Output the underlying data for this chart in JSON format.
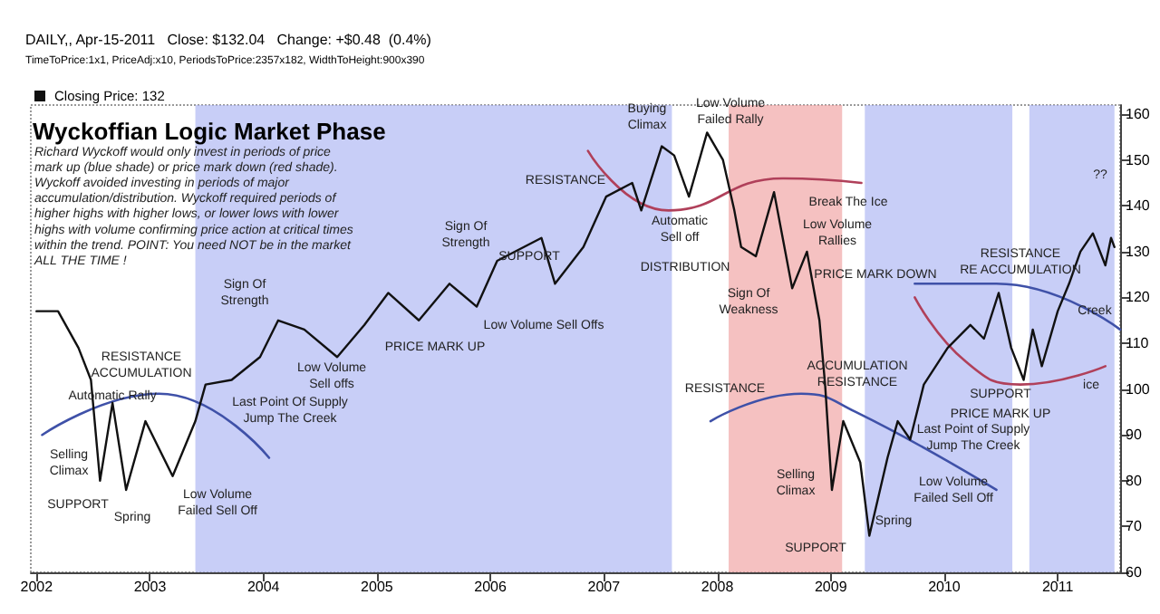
{
  "chart_data": {
    "type": "line",
    "title": "Wyckoffian Logic Market Phase",
    "subtitle": "DAILY,, Apr-15-2011   Close: $132.04   Change: +$0.48  (0.4%)",
    "series": [
      {
        "name": "Closing Price: 132",
        "color": "#111111",
        "x": [
          2002.0,
          2002.19,
          2002.37,
          2002.48,
          2002.56,
          2002.67,
          2002.79,
          2002.96,
          2003.2,
          2003.4,
          2003.49,
          2003.72,
          2003.97,
          2004.13,
          2004.36,
          2004.65,
          2004.89,
          2005.1,
          2005.37,
          2005.64,
          2005.88,
          2006.06,
          2006.45,
          2006.57,
          2006.82,
          2007.02,
          2007.25,
          2007.33,
          2007.51,
          2007.62,
          2007.75,
          2007.91,
          2008.05,
          2008.15,
          2008.21,
          2008.34,
          2008.5,
          2008.66,
          2008.79,
          2008.9,
          2008.95,
          2009.01,
          2009.11,
          2009.26,
          2009.34,
          2009.5,
          2009.59,
          2009.7,
          2009.82,
          2010.03,
          2010.23,
          2010.35,
          2010.48,
          2010.59,
          2010.7,
          2010.78,
          2010.86,
          2011.0,
          2011.1,
          2011.2,
          2011.31,
          2011.42,
          2011.47,
          2011.5
        ],
        "values": [
          117,
          117,
          109,
          102,
          80,
          97,
          78,
          93,
          81,
          93,
          101,
          102,
          107,
          115,
          113,
          107,
          114,
          121,
          115,
          123,
          118,
          128,
          133,
          123,
          131,
          142,
          145,
          139,
          153,
          151,
          142,
          156,
          150,
          139,
          131,
          129,
          143,
          122,
          130,
          115,
          101,
          78,
          93,
          84,
          68,
          85,
          93,
          89,
          101,
          109,
          114,
          111,
          121,
          109,
          102,
          113,
          105,
          117,
          123,
          130,
          134,
          127,
          133,
          131
        ]
      },
      {
        "color": "#3f51a8",
        "x": [
          2002.05,
          2003.08,
          2004.05
        ],
        "values": [
          90,
          99,
          85
        ]
      },
      {
        "color": "#b0405a",
        "x": [
          2006.86,
          2007.57,
          2008.58,
          2009.27
        ],
        "values": [
          152,
          139,
          146,
          145
        ]
      },
      {
        "color": "#3f51a8",
        "x": [
          2007.94,
          2008.74,
          2009.22,
          2010.46
        ],
        "values": [
          93,
          99,
          95,
          78
        ]
      },
      {
        "color": "#b0405a",
        "x": [
          2009.74,
          2010.19,
          2010.67,
          2011.42
        ],
        "values": [
          120,
          106,
          101,
          105
        ]
      },
      {
        "color": "#3f51a8",
        "x": [
          2009.74,
          2010.46,
          2011.55
        ],
        "values": [
          123,
          123,
          113
        ]
      }
    ],
    "xlim": [
      2001.95,
      2011.55
    ],
    "xticks": [
      2002,
      2003,
      2004,
      2005,
      2006,
      2007,
      2008,
      2009,
      2010,
      2011
    ],
    "ylim": [
      60,
      162
    ],
    "yticks": [
      60,
      70,
      80,
      90,
      100,
      110,
      120,
      130,
      140,
      150,
      160
    ],
    "bands": [
      {
        "axis": "x",
        "from": 2003.4,
        "to": 2007.6,
        "color": "#aab4f2"
      },
      {
        "axis": "x",
        "from": 2008.1,
        "to": 2009.1,
        "color": "#f0a0a0"
      },
      {
        "axis": "x",
        "from": 2009.3,
        "to": 2010.6,
        "color": "#aab4f2"
      },
      {
        "axis": "x",
        "from": 2010.75,
        "to": 2011.5,
        "color": "#aab4f2"
      }
    ],
    "grid": false,
    "legend": "top left",
    "marker": "none",
    "line_style": "solid",
    "annotations": [
      "TimeToPrice:1x1, PriceAdj:x10, PeriodsToPrice:2357x182, WidthToHeight:900x390",
      "Richard Wyckoff would only invest in periods of price mark up (blue shade) or price mark down (red shade). Wyckoff avoided investing in periods of major accumulation/distribution. Wyckoff required periods of higher highs with higher lows, or lower lows with lower highs with volume confirming price action at critical times within the trend. POINT: You need NOT be in the market ALL THE TIME !",
      "Selling\nClimax",
      "SUPPORT",
      "Spring",
      "Automatic Rally",
      "RESISTANCE\nACCUMULATION",
      "Low Volume\nFailed Sell Off",
      "Sign Of\nStrength",
      "Last Point Of Supply\nJump The Creek",
      "Low Volume\nSell offs",
      "PRICE MARK UP",
      "Sign Of\nStrength",
      "Low Volume Sell Offs",
      "SUPPORT",
      "RESISTANCE",
      "Buying\nClimax",
      "Low Volume\nFailed Rally",
      "Automatic\nSell off",
      "DISTRIBUTION",
      "Sign Of\nWeakness",
      "Break The Ice",
      "Low Volume\nRallies",
      "PRICE MARK DOWN",
      "RESISTANCE",
      "ACCUMULATION\nRESISTANCE",
      "Selling\nClimax",
      "SUPPORT",
      "Spring",
      "Low Volume\nFailed Sell Off",
      "Last Point of Supply\nJump The Creek",
      "PRICE MARK UP",
      "SUPPORT",
      "RESISTANCE\nRE ACCUMULATION",
      "Creek",
      "ice",
      "??"
    ]
  }
}
